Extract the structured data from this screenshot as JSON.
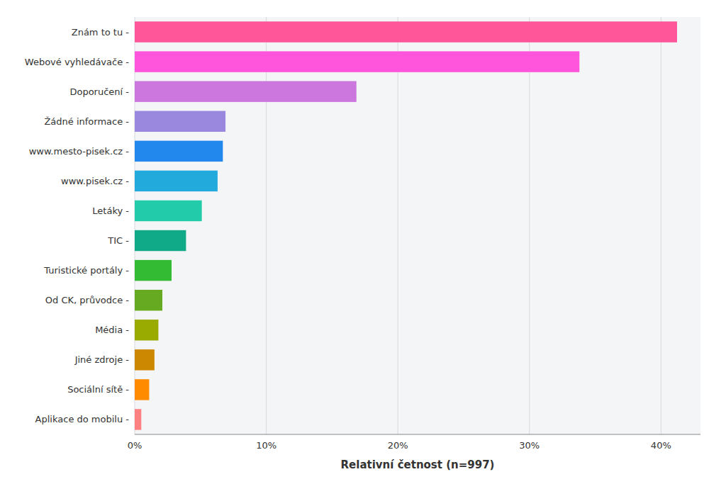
{
  "chart_data": {
    "type": "bar",
    "orientation": "horizontal",
    "categories": [
      "Aplikace do mobilu -",
      "Sociální sítě -",
      "Jiné zdroje -",
      "Média -",
      "Od CK, průvodce -",
      "Turistické portály -",
      "TIC -",
      "Letáky -",
      "www.pisek.cz -",
      "www.mesto-pisek.cz -",
      "Žádné informace -",
      "Doporučení -",
      "Webové vyhledávače -",
      "Znám to tu -"
    ],
    "values": [
      0.5,
      1.1,
      1.5,
      1.8,
      2.1,
      2.8,
      3.9,
      5.1,
      6.3,
      6.7,
      6.9,
      16.85,
      33.8,
      41.22
    ],
    "colors": [
      "#FF8080",
      "#FF8C00",
      "#CC8800",
      "#99AA00",
      "#66AA22",
      "#33BB33",
      "#11AA88",
      "#22CCAA",
      "#22AADD",
      "#2288EE",
      "#9988DD",
      "#CC77DD",
      "#FF55DD",
      "#FF5599"
    ],
    "xlabel": "Relativní četnost (n=997)",
    "xlim": [
      0,
      43
    ],
    "xticks": [
      {
        "value": 0,
        "label": "0%"
      },
      {
        "value": 10,
        "label": "10%"
      },
      {
        "value": 20,
        "label": "20%"
      },
      {
        "value": 30,
        "label": "30%"
      },
      {
        "value": 40,
        "label": "40%"
      }
    ],
    "grid": true
  }
}
